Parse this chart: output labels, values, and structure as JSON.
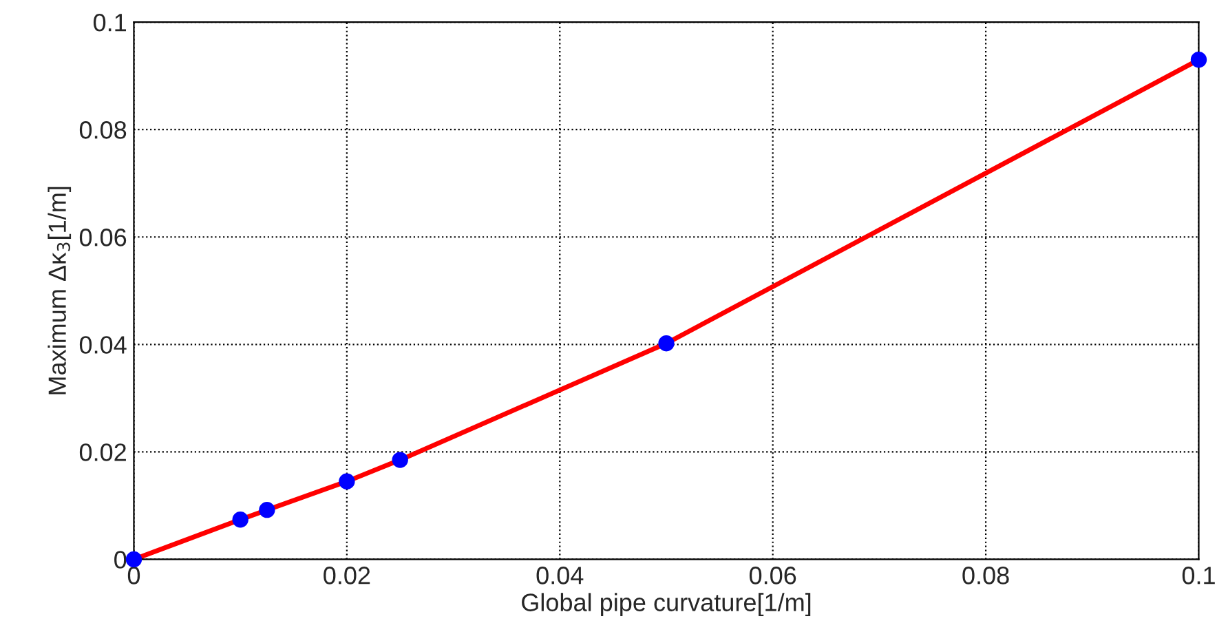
{
  "chart_data": {
    "type": "line",
    "xlabel": "Global pipe curvature[1/m]",
    "ylabel": "Maximum Δκ$_{3}$[1/m]",
    "x": [
      0,
      0.01,
      0.0125,
      0.02,
      0.025,
      0.05,
      0.1
    ],
    "series": [
      {
        "color": "#ff0000",
        "values": [
          0,
          0.0074,
          0.0092,
          0.0145,
          0.0185,
          0.0402,
          0.093
        ],
        "line_style": "solid"
      },
      {
        "type": "scatter",
        "color": "#0000ff",
        "values": [
          0,
          0.0074,
          0.0092,
          0.0145,
          0.0185,
          0.0402,
          0.093
        ],
        "marker": "circle"
      }
    ],
    "xlim": [
      0,
      0.1
    ],
    "xticks": [
      0,
      0.02,
      0.04,
      0.06,
      0.08,
      0.1
    ],
    "ylim": [
      0,
      0.1
    ],
    "yticks": [
      0,
      0.02,
      0.04,
      0.06,
      0.08,
      0.1
    ],
    "grid": true
  }
}
